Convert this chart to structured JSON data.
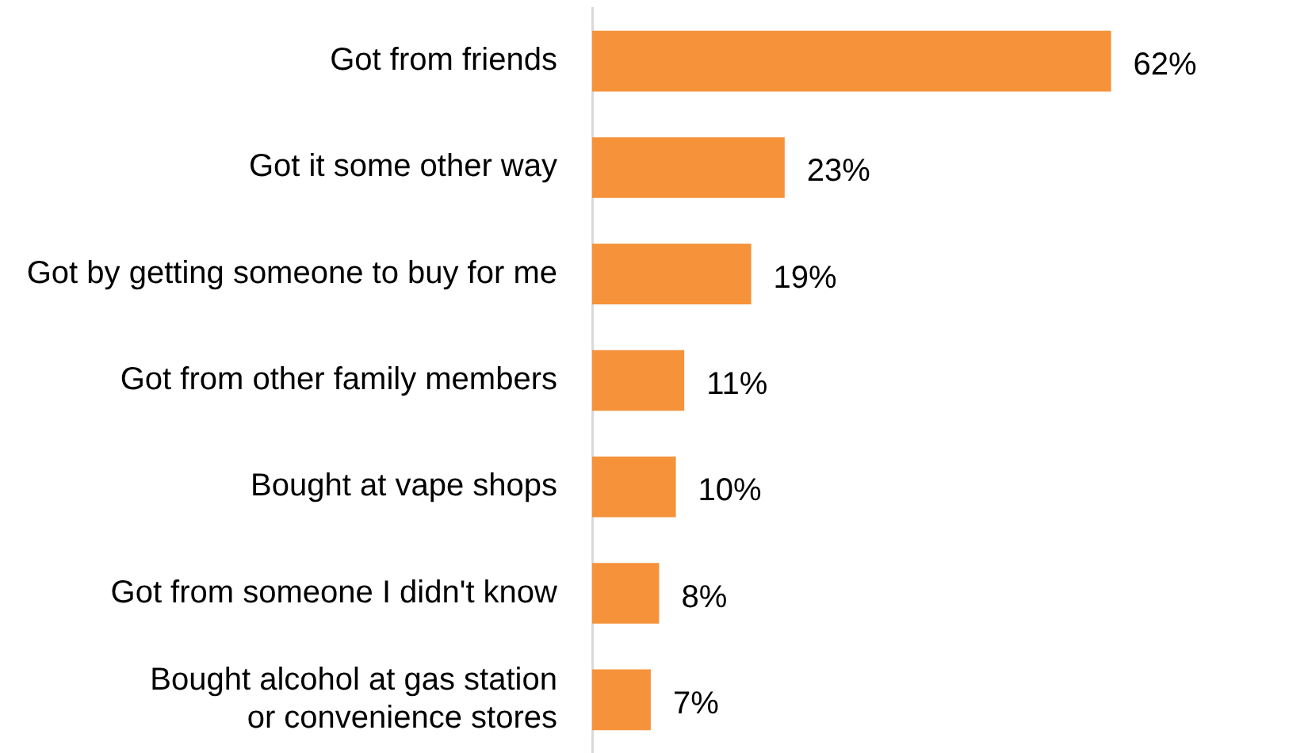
{
  "chart_data": {
    "type": "bar",
    "orientation": "horizontal",
    "categories": [
      "Got from friends",
      "Got it some other way",
      "Got by getting someone to buy for me",
      "Got from other family members",
      "Bought at vape shops",
      "Got from someone I didn't know",
      "Bought alcohol at gas station\nor convenience stores"
    ],
    "values": [
      62,
      23,
      19,
      11,
      10,
      8,
      7
    ],
    "value_labels": [
      "62%",
      "23%",
      "19%",
      "11%",
      "10%",
      "8%",
      "7%"
    ],
    "color": "#f5923a",
    "tick_labels": "y"
  }
}
